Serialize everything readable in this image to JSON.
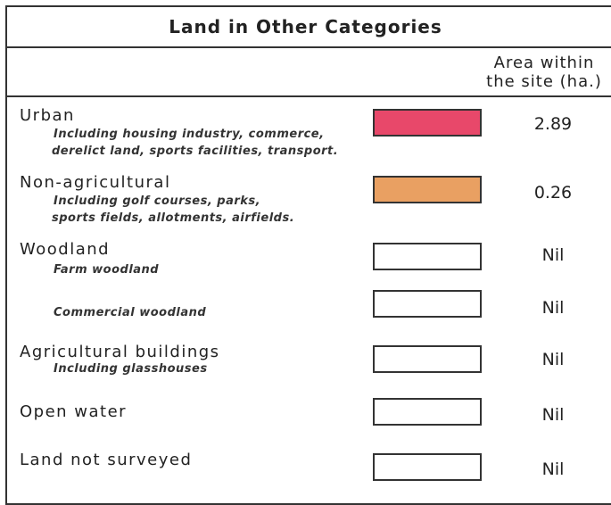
{
  "title": "Land in Other Categories",
  "column_header": [
    "Area within",
    "the site (ha.)"
  ],
  "rows": [
    {
      "label": "Urban",
      "description": [
        "Including housing industry, commerce,",
        "derelict land, sports facilities, transport."
      ],
      "color": "#e8486a",
      "area": "2.89"
    },
    {
      "label": "Non-agricultural",
      "description": [
        "Including golf courses, parks,",
        "sports fields, allotments, airfields."
      ],
      "color": "#e9a062",
      "area": "0.26"
    },
    {
      "label": "Woodland",
      "description": [
        "Farm woodland"
      ],
      "color": "#ffffff",
      "area": "Nil"
    },
    {
      "description": [
        "Commercial woodland"
      ],
      "color": "#ffffff",
      "area": "Nil"
    },
    {
      "label": "Agricultural buildings",
      "description": [
        "Including glasshouses"
      ],
      "color": "#ffffff",
      "area": "Nil"
    },
    {
      "label": "Open water",
      "color": "#ffffff",
      "area": "Nil"
    },
    {
      "label": "Land not surveyed",
      "color": "#ffffff",
      "area": "Nil"
    }
  ]
}
